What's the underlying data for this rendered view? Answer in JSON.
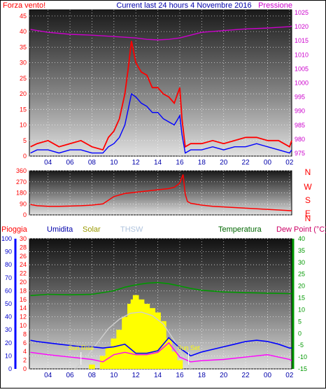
{
  "chart_data": [
    {
      "type": "line",
      "title": "Current last 24 hours 4 Novembre 2016",
      "left_axis_label": "Forza vento!",
      "right_axis_label": "Pressione",
      "x_ticks": [
        "04",
        "06",
        "08",
        "10",
        "12",
        "14",
        "16",
        "18",
        "20",
        "22",
        "00",
        "02"
      ],
      "x_range": [
        2.3,
        26.2
      ],
      "y_left": {
        "ticks": [
          0,
          5,
          10,
          15,
          20,
          25,
          30,
          35,
          40,
          45
        ],
        "range": [
          0,
          47
        ]
      },
      "y_right": {
        "ticks": [
          975,
          980,
          985,
          990,
          995,
          1000,
          1005,
          1010,
          1015,
          1020,
          1025
        ],
        "range": [
          974,
          1026
        ]
      },
      "series": [
        {
          "color": "#ff0000",
          "axis": "left",
          "x": [
            2.4,
            3,
            4,
            5,
            6,
            7,
            8,
            9,
            9.5,
            10,
            10.5,
            11,
            11.3,
            11.6,
            12,
            12.5,
            13,
            13.5,
            14,
            14.5,
            15,
            15.5,
            16,
            16.2,
            16.5,
            17,
            18,
            19,
            20,
            21,
            22,
            23,
            24,
            25,
            26,
            26.2
          ],
          "y": [
            3,
            4,
            5,
            3,
            4,
            5,
            3,
            2,
            6,
            8,
            12,
            20,
            28,
            37,
            30,
            27,
            26,
            22,
            22,
            20,
            19,
            17,
            22,
            12,
            3,
            4,
            4,
            5,
            4,
            5,
            6,
            6,
            5,
            5,
            3,
            5
          ]
        },
        {
          "color": "#0000ff",
          "axis": "left",
          "x": [
            2.4,
            3,
            4,
            5,
            6,
            7,
            8,
            9,
            9.5,
            10,
            10.5,
            11,
            11.3,
            11.6,
            12,
            12.5,
            13,
            13.5,
            14,
            14.5,
            15,
            15.5,
            16,
            16.2,
            16.5,
            17,
            18,
            19,
            20,
            21,
            22,
            23,
            24,
            25,
            26,
            26.2
          ],
          "y": [
            1,
            2,
            2,
            1,
            2,
            2,
            1,
            1,
            3,
            4,
            6,
            10,
            15,
            20,
            19,
            17,
            16,
            14,
            14,
            12,
            11,
            10,
            13,
            7,
            1,
            2,
            2,
            3,
            2,
            3,
            3,
            4,
            3,
            2,
            1,
            2
          ]
        },
        {
          "color": "#cc00cc",
          "axis": "right",
          "x": [
            2.4,
            4,
            6,
            8,
            10,
            12,
            13,
            14,
            15,
            16,
            17,
            18,
            20,
            22,
            24,
            26,
            26.2
          ],
          "y": [
            1019,
            1018,
            1017.3,
            1017,
            1016.5,
            1016,
            1015.5,
            1015.3,
            1015.5,
            1016,
            1017,
            1018,
            1018.6,
            1019.2,
            1019.5,
            1020,
            1020.2
          ]
        }
      ]
    },
    {
      "type": "line",
      "x_ticks": [
        "04",
        "06",
        "08",
        "10",
        "12",
        "14",
        "16",
        "18",
        "20",
        "22",
        "00",
        "02"
      ],
      "x_range": [
        2.3,
        26.2
      ],
      "y_left": {
        "ticks": [
          0,
          90,
          180,
          270,
          360
        ],
        "range": [
          0,
          360
        ]
      },
      "right_labels": [
        "N",
        "W",
        "S",
        "E",
        "N"
      ],
      "series": [
        {
          "color": "#ff0000",
          "x": [
            2.4,
            3,
            4,
            5,
            6,
            7,
            8,
            9,
            9.5,
            10,
            11,
            12,
            13,
            14,
            15,
            15.5,
            16,
            16.3,
            16.5,
            16.7,
            17,
            18,
            19,
            20,
            21,
            22,
            23,
            24,
            25,
            26,
            26.2
          ],
          "y": [
            85,
            75,
            70,
            70,
            72,
            75,
            80,
            90,
            120,
            150,
            175,
            185,
            195,
            205,
            215,
            225,
            260,
            330,
            170,
            110,
            95,
            80,
            70,
            65,
            60,
            55,
            50,
            45,
            40,
            35,
            35
          ]
        }
      ]
    },
    {
      "type": "area",
      "headers": [
        "Pioggia",
        "Umidita",
        "Solar",
        "THSW",
        "Temperatura",
        "Dew Point (°C)"
      ],
      "x_ticks": [
        "04",
        "06",
        "08",
        "10",
        "12",
        "14",
        "16",
        "18",
        "20",
        "22",
        "00",
        "02"
      ],
      "x_range": [
        2.3,
        26.2
      ],
      "y_blue": {
        "ticks": [
          0,
          10,
          20,
          30,
          40,
          50,
          60,
          70,
          80,
          90,
          100
        ],
        "range": [
          0,
          100
        ]
      },
      "y_red": {
        "ticks": [
          0,
          2,
          4,
          6,
          8,
          10,
          12,
          14,
          16,
          18,
          20,
          22,
          24,
          26,
          28,
          30
        ],
        "range": [
          0,
          30
        ]
      },
      "y_green": {
        "ticks": [
          -15,
          -10,
          -5,
          0,
          5,
          10,
          15,
          20,
          25,
          30,
          35,
          40
        ],
        "range": [
          -15,
          40
        ]
      },
      "annotations": [
        {
          "text": "Sun Rise",
          "x": 7.0
        },
        {
          "text": "Sun Set",
          "x": 16.8
        }
      ],
      "series": [
        {
          "name": "Temperatura",
          "color": "#009900",
          "axis": "green",
          "x": [
            2.4,
            4,
            6,
            8,
            10,
            11,
            12,
            13,
            14,
            15,
            16,
            17,
            18,
            20,
            22,
            24,
            26,
            26.2
          ],
          "y": [
            16,
            16.5,
            16.3,
            16.5,
            18,
            19.5,
            20.5,
            21.2,
            21.5,
            21,
            20,
            19,
            18.2,
            17.5,
            17.2,
            17,
            16.8,
            16.8
          ]
        },
        {
          "name": "Umidita",
          "color": "#0000ff",
          "axis": "blue",
          "x": [
            2.4,
            3,
            4,
            5,
            6,
            7,
            8,
            9,
            10,
            11,
            12,
            13,
            14,
            15,
            16,
            17,
            18,
            19,
            20,
            21,
            22,
            23,
            24,
            25,
            26,
            26.2
          ],
          "y": [
            22,
            21,
            20,
            19,
            18,
            17,
            17,
            16,
            17,
            19,
            12,
            12,
            14,
            24,
            16,
            10,
            13,
            15,
            17,
            19,
            21,
            22,
            21,
            19,
            16,
            16
          ]
        },
        {
          "name": "Dew Point (°C)",
          "color": "#ff00ff",
          "axis": "green",
          "x": [
            2.4,
            4,
            6,
            8,
            9,
            10,
            11,
            12,
            13,
            14,
            15,
            16,
            17,
            18,
            20,
            22,
            24,
            26,
            26.2
          ],
          "y": [
            -8,
            -9,
            -10,
            -11,
            -12,
            -9,
            -8,
            -9,
            -9,
            -8,
            -4,
            -10,
            -12,
            -11.5,
            -11,
            -10,
            -9,
            -11,
            -11.5
          ]
        },
        {
          "name": "THSW",
          "color": "#cfcfcf",
          "axis": "green",
          "x": [
            6.5,
            7.5,
            8.5,
            9.5,
            10.5,
            11.5,
            12.5,
            13.5,
            14.5,
            15.5,
            16.5,
            17
          ],
          "y": [
            -15,
            -10,
            -4,
            2,
            6,
            8.5,
            9,
            7.5,
            4,
            -3,
            -11,
            -15
          ]
        },
        {
          "name": "Solar",
          "color": "#ffff00",
          "axis": "red",
          "x": [
            7,
            8,
            9,
            9.5,
            10,
            10.5,
            11,
            11.5,
            11.8,
            12,
            12.5,
            13,
            13.5,
            14,
            14.5,
            15,
            15.5,
            16,
            16.5
          ],
          "y": [
            0,
            1,
            3,
            5,
            7,
            9,
            12,
            15,
            16,
            17,
            16,
            15,
            14,
            13,
            11,
            7,
            4,
            2,
            0
          ]
        }
      ]
    }
  ]
}
